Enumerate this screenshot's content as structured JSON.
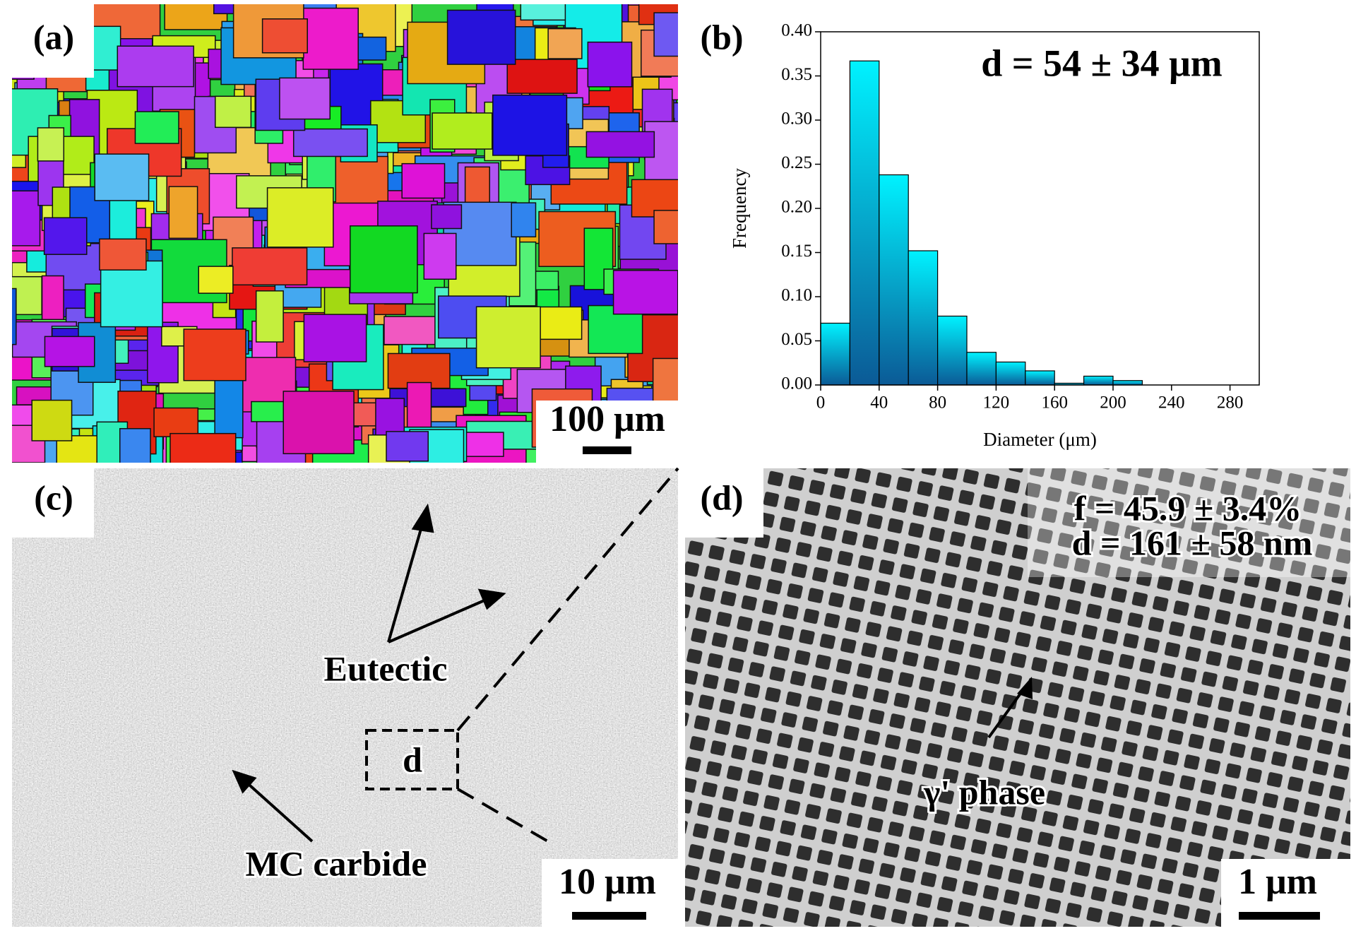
{
  "panels": {
    "a": {
      "label": "(a)",
      "scale_bar": "100 μm"
    },
    "b": {
      "label": "(b)"
    },
    "c": {
      "label": "(c)",
      "scale_bar": "10 μm",
      "annotations": [
        "Eutectic",
        "MC carbide",
        "d"
      ]
    },
    "d": {
      "label": "(d)",
      "scale_bar": "1 μm",
      "annotations": [
        "f = 45.9 ± 3.4%",
        "d = 161 ± 58 nm",
        "γ' phase"
      ]
    }
  },
  "chart_data": {
    "type": "histogram",
    "annotation": "d = 54 ± 34 μm",
    "x_label": "Diameter (μm)",
    "y_label": "Frequency",
    "bins": [
      0,
      20,
      40,
      60,
      80,
      100,
      120,
      140,
      160,
      180,
      200,
      220
    ],
    "values": [
      0.07,
      0.367,
      0.238,
      0.152,
      0.078,
      0.037,
      0.026,
      0.016,
      0.002,
      0.01,
      0.005
    ],
    "gradient": [
      "#00f2ff",
      "#0b5a96"
    ],
    "xlim": [
      0,
      300
    ],
    "xticks": [
      0,
      40,
      80,
      120,
      160,
      200,
      240,
      280
    ],
    "ylim": [
      0,
      0.4
    ],
    "yticks": [
      {
        "value": 0,
        "label": "0.00"
      },
      0.05,
      {
        "value": 0.1,
        "label": "0.10"
      },
      0.15,
      {
        "value": 0.2,
        "label": "0.20"
      },
      0.25,
      {
        "value": 0.3,
        "label": "0.30"
      },
      0.35,
      {
        "value": 0.4,
        "label": "0.40"
      }
    ]
  }
}
